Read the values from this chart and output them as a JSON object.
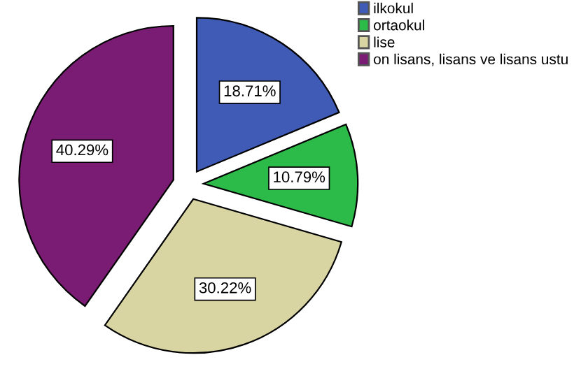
{
  "chart_data": {
    "type": "pie",
    "categories": [
      "ilkokul",
      "ortaokul",
      "lise",
      "on lisans, lisans ve lisans ustu"
    ],
    "values": [
      18.71,
      10.79,
      30.22,
      40.29
    ],
    "colors": [
      "#3f5bb5",
      "#2cba48",
      "#d9d5a2",
      "#7a1c74"
    ],
    "value_labels": [
      "18.71%",
      "10.79%",
      "30.22%",
      "40.29%"
    ],
    "legend": "top right"
  }
}
